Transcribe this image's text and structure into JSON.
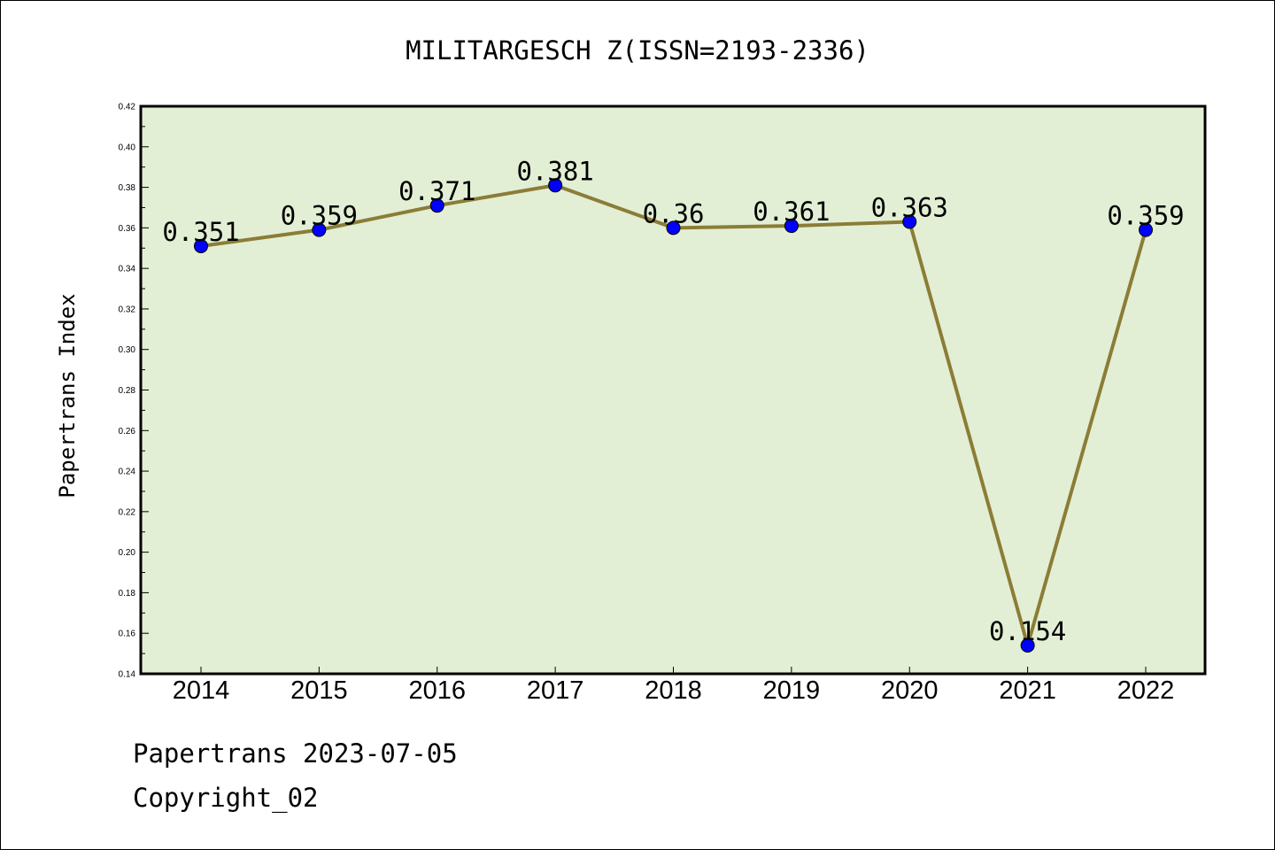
{
  "chart_data": {
    "type": "line",
    "title": "MILITARGESCH Z(ISSN=2193-2336)",
    "xlabel": "",
    "ylabel": "Papertrans Index",
    "categories": [
      "2014",
      "2015",
      "2016",
      "2017",
      "2018",
      "2019",
      "2020",
      "2021",
      "2022"
    ],
    "series": [
      {
        "values": [
          0.351,
          0.359,
          0.371,
          0.381,
          0.36,
          0.361,
          0.363,
          0.154,
          0.359
        ],
        "labels": [
          "0.351",
          "0.359",
          "0.371",
          "0.381",
          "0.36",
          "0.361",
          "0.363",
          "0.154",
          "0.359"
        ],
        "line_color": "#8b7d35",
        "marker_color": "#0000ff"
      }
    ],
    "ylim": [
      0.14,
      0.42
    ],
    "yticks": [
      "0.14",
      "0.16",
      "0.18",
      "0.20",
      "0.22",
      "0.24",
      "0.26",
      "0.28",
      "0.30",
      "0.32",
      "0.34",
      "0.36",
      "0.38",
      "0.40",
      "0.42"
    ],
    "plot_background": "#e2efd5",
    "grid": false,
    "legend": "none"
  },
  "footer": {
    "line1": "Papertrans 2023-07-05",
    "line2": "Copyright_02"
  }
}
